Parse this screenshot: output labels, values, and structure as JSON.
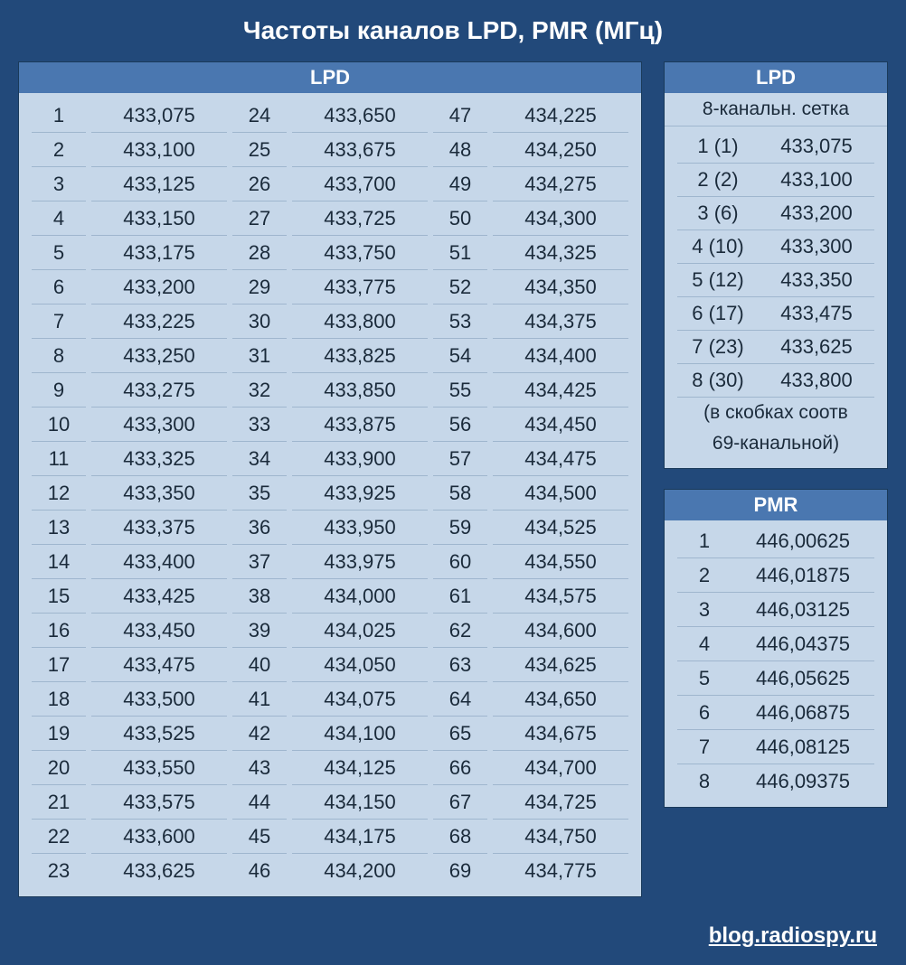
{
  "title": "Частоты каналов LPD, PMR (МГц)",
  "colors": {
    "page_bg": "#22497a",
    "table_bg": "#c6d7e9",
    "header_bg": "#4a77b0",
    "header_fg": "#ffffff",
    "cell_fg": "#1a2a3a",
    "rowline": "#9fb6ce"
  },
  "lpd": {
    "header": "LPD",
    "channels": [
      {
        "ch": "1",
        "fq": "433,075"
      },
      {
        "ch": "2",
        "fq": "433,100"
      },
      {
        "ch": "3",
        "fq": "433,125"
      },
      {
        "ch": "4",
        "fq": "433,150"
      },
      {
        "ch": "5",
        "fq": "433,175"
      },
      {
        "ch": "6",
        "fq": "433,200"
      },
      {
        "ch": "7",
        "fq": "433,225"
      },
      {
        "ch": "8",
        "fq": "433,250"
      },
      {
        "ch": "9",
        "fq": "433,275"
      },
      {
        "ch": "10",
        "fq": "433,300"
      },
      {
        "ch": "11",
        "fq": "433,325"
      },
      {
        "ch": "12",
        "fq": "433,350"
      },
      {
        "ch": "13",
        "fq": "433,375"
      },
      {
        "ch": "14",
        "fq": "433,400"
      },
      {
        "ch": "15",
        "fq": "433,425"
      },
      {
        "ch": "16",
        "fq": "433,450"
      },
      {
        "ch": "17",
        "fq": "433,475"
      },
      {
        "ch": "18",
        "fq": "433,500"
      },
      {
        "ch": "19",
        "fq": "433,525"
      },
      {
        "ch": "20",
        "fq": "433,550"
      },
      {
        "ch": "21",
        "fq": "433,575"
      },
      {
        "ch": "22",
        "fq": "433,600"
      },
      {
        "ch": "23",
        "fq": "433,625"
      },
      {
        "ch": "24",
        "fq": "433,650"
      },
      {
        "ch": "25",
        "fq": "433,675"
      },
      {
        "ch": "26",
        "fq": "433,700"
      },
      {
        "ch": "27",
        "fq": "433,725"
      },
      {
        "ch": "28",
        "fq": "433,750"
      },
      {
        "ch": "29",
        "fq": "433,775"
      },
      {
        "ch": "30",
        "fq": "433,800"
      },
      {
        "ch": "31",
        "fq": "433,825"
      },
      {
        "ch": "32",
        "fq": "433,850"
      },
      {
        "ch": "33",
        "fq": "433,875"
      },
      {
        "ch": "34",
        "fq": "433,900"
      },
      {
        "ch": "35",
        "fq": "433,925"
      },
      {
        "ch": "36",
        "fq": "433,950"
      },
      {
        "ch": "37",
        "fq": "433,975"
      },
      {
        "ch": "38",
        "fq": "434,000"
      },
      {
        "ch": "39",
        "fq": "434,025"
      },
      {
        "ch": "40",
        "fq": "434,050"
      },
      {
        "ch": "41",
        "fq": "434,075"
      },
      {
        "ch": "42",
        "fq": "434,100"
      },
      {
        "ch": "43",
        "fq": "434,125"
      },
      {
        "ch": "44",
        "fq": "434,150"
      },
      {
        "ch": "45",
        "fq": "434,175"
      },
      {
        "ch": "46",
        "fq": "434,200"
      },
      {
        "ch": "47",
        "fq": "434,225"
      },
      {
        "ch": "48",
        "fq": "434,250"
      },
      {
        "ch": "49",
        "fq": "434,275"
      },
      {
        "ch": "50",
        "fq": "434,300"
      },
      {
        "ch": "51",
        "fq": "434,325"
      },
      {
        "ch": "52",
        "fq": "434,350"
      },
      {
        "ch": "53",
        "fq": "434,375"
      },
      {
        "ch": "54",
        "fq": "434,400"
      },
      {
        "ch": "55",
        "fq": "434,425"
      },
      {
        "ch": "56",
        "fq": "434,450"
      },
      {
        "ch": "57",
        "fq": "434,475"
      },
      {
        "ch": "58",
        "fq": "434,500"
      },
      {
        "ch": "59",
        "fq": "434,525"
      },
      {
        "ch": "60",
        "fq": "434,550"
      },
      {
        "ch": "61",
        "fq": "434,575"
      },
      {
        "ch": "62",
        "fq": "434,600"
      },
      {
        "ch": "63",
        "fq": "434,625"
      },
      {
        "ch": "64",
        "fq": "434,650"
      },
      {
        "ch": "65",
        "fq": "434,675"
      },
      {
        "ch": "66",
        "fq": "434,700"
      },
      {
        "ch": "67",
        "fq": "434,725"
      },
      {
        "ch": "68",
        "fq": "434,750"
      },
      {
        "ch": "69",
        "fq": "434,775"
      }
    ],
    "rows_per_col": 23
  },
  "lpd8": {
    "header": "LPD",
    "subheader": "8-канальн. сетка",
    "channels": [
      {
        "ch": "1 (1)",
        "fq": "433,075"
      },
      {
        "ch": "2 (2)",
        "fq": "433,100"
      },
      {
        "ch": "3 (6)",
        "fq": "433,200"
      },
      {
        "ch": "4 (10)",
        "fq": "433,300"
      },
      {
        "ch": "5 (12)",
        "fq": "433,350"
      },
      {
        "ch": "6 (17)",
        "fq": "433,475"
      },
      {
        "ch": "7 (23)",
        "fq": "433,625"
      },
      {
        "ch": "8 (30)",
        "fq": "433,800"
      }
    ],
    "note1": "(в скобках соотв",
    "note2": "69-канальной)"
  },
  "pmr": {
    "header": "PMR",
    "channels": [
      {
        "ch": "1",
        "fq": "446,00625"
      },
      {
        "ch": "2",
        "fq": "446,01875"
      },
      {
        "ch": "3",
        "fq": "446,03125"
      },
      {
        "ch": "4",
        "fq": "446,04375"
      },
      {
        "ch": "5",
        "fq": "446,05625"
      },
      {
        "ch": "6",
        "fq": "446,06875"
      },
      {
        "ch": "7",
        "fq": "446,08125"
      },
      {
        "ch": "8",
        "fq": "446,09375"
      }
    ]
  },
  "footer": "blog.radiospy.ru"
}
